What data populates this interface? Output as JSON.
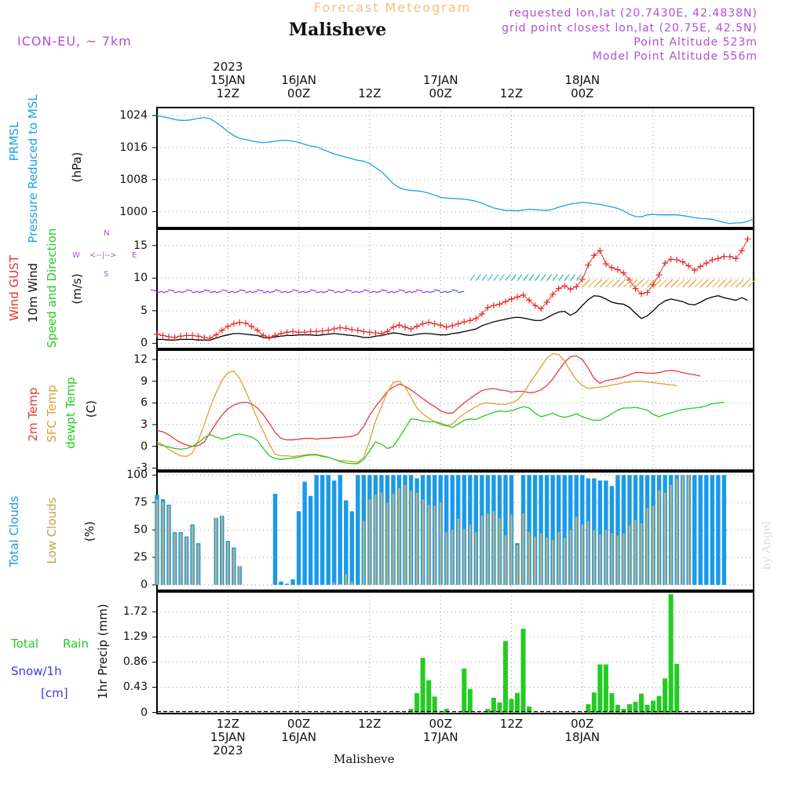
{
  "header": {
    "title": "Forecast Meteogram",
    "location": "Malisheve",
    "model": "ICON-EU, ~ 7km",
    "requested": "requested lon,lat (20.7430E, 42.4838N)",
    "gridpoint": "grid point closest lon,lat (20.75E, 42.5N)",
    "point_alt": "Point Altitude 523m",
    "model_alt": "Model Point Altitude 556m",
    "watermark": "by Angel",
    "bottom_label": "Malisheve"
  },
  "time_axis": {
    "top_labels": [
      {
        "hour": 12,
        "lines": [
          "2023",
          "15JAN",
          "12Z"
        ]
      },
      {
        "hour": 24,
        "lines": [
          "16JAN",
          "00Z"
        ]
      },
      {
        "hour": 36,
        "lines": [
          "12Z"
        ]
      },
      {
        "hour": 48,
        "lines": [
          "17JAN",
          "00Z"
        ]
      },
      {
        "hour": 60,
        "lines": [
          "12Z"
        ]
      },
      {
        "hour": 72,
        "lines": [
          "18JAN",
          "00Z"
        ]
      }
    ],
    "bottom_labels": [
      {
        "hour": 12,
        "lines": [
          "12Z",
          "15JAN",
          "2023"
        ]
      },
      {
        "hour": 24,
        "lines": [
          "00Z",
          "16JAN"
        ]
      },
      {
        "hour": 36,
        "lines": [
          "12Z"
        ]
      },
      {
        "hour": 48,
        "lines": [
          "00Z",
          "17JAN"
        ]
      },
      {
        "hour": 60,
        "lines": [
          "12Z"
        ]
      },
      {
        "hour": 72,
        "lines": [
          "00Z",
          "18JAN"
        ]
      }
    ]
  },
  "panel_labels": {
    "pressure": {
      "a": "PRMSL",
      "b": "Pressure Reduced to MSL",
      "unit": "(hPa)"
    },
    "wind": {
      "gust": "Wind GUST",
      "wind10": "10m Wind",
      "speeddir": "Speed and Direction",
      "unit": "(m/s)",
      "compass_w": "W",
      "compass_e": "E",
      "compass_n": "N",
      "compass_s": "S"
    },
    "temp": {
      "t2m": "2m Temp",
      "sfc": "SFC Temp",
      "dew": "dewpt Temp",
      "unit": "(C)"
    },
    "clouds": {
      "total": "Total Clouds",
      "low": "Low Clouds",
      "unit": "(%)"
    },
    "precip": {
      "total": "Total",
      "rain": "Rain",
      "snow": "Snow/1h",
      "cm": "[cm]",
      "axis": "1hr Precip (mm)"
    }
  },
  "colors": {
    "pressure": "#1aa0e8",
    "gust": "#e83030",
    "wind": "#000000",
    "t2m": "#e83a3a",
    "sfc": "#e0a030",
    "dew": "#22cc22",
    "total_clouds": "#1a9ae8",
    "low_clouds": "#c8b078",
    "rain": "#22cc22",
    "label_purple": "#b050d0",
    "snow": "#3a3ae8"
  },
  "chart_data": [
    {
      "type": "line",
      "name": "pressure",
      "x_unit": "hours",
      "x_start": 0,
      "x_step": 1,
      "y_ticks": [
        1000,
        1008,
        1016,
        1024
      ],
      "ylim": [
        996,
        1026
      ],
      "series": [
        {
          "name": "PRMSL",
          "values": [
            1024,
            1023.7,
            1023.4,
            1023,
            1022.8,
            1022.8,
            1023,
            1023.3,
            1023.5,
            1023.2,
            1022.3,
            1021.2,
            1020,
            1019,
            1018.3,
            1018,
            1017.7,
            1017.4,
            1017.2,
            1017.4,
            1017.6,
            1017.8,
            1017.8,
            1017.6,
            1017.3,
            1016.8,
            1016.4,
            1016.2,
            1015.6,
            1015,
            1014.4,
            1014,
            1013.6,
            1013.2,
            1012.8,
            1012.6,
            1012,
            1011,
            1010,
            1008.5,
            1007,
            1006,
            1005.5,
            1005.3,
            1005.2,
            1005,
            1004.6,
            1004.1,
            1003.6,
            1003.4,
            1003.3,
            1003.2,
            1003.1,
            1002.9,
            1002.6,
            1002.1,
            1001.5,
            1000.9,
            1000.6,
            1000.3,
            1000.3,
            1000.2,
            1000.4,
            1000.6,
            1000.5,
            1000.4,
            1000.3,
            1000.6,
            1001.1,
            1001.5,
            1001.9,
            1002.1,
            1002.3,
            1002.2,
            1002,
            1001.8,
            1001.5,
            1001.2,
            1000.8,
            1000.2,
            999.3,
            998.8,
            998.7,
            999.2,
            999.3,
            999.2,
            999.2,
            999.2,
            999.2,
            999,
            998.8,
            998.5,
            998.3,
            998.2,
            998.1,
            997.7,
            997.3,
            997,
            997.2,
            997.2,
            997.6,
            998.1
          ]
        }
      ]
    },
    {
      "type": "line",
      "name": "wind",
      "x_unit": "hours",
      "x_start": 0,
      "x_step": 1,
      "y_ticks": [
        0,
        5,
        10,
        15
      ],
      "ylim": [
        -0.8,
        17.5
      ],
      "series": [
        {
          "name": "Wind GUST",
          "values": [
            1.4,
            1.2,
            1.0,
            0.9,
            1.1,
            1.2,
            1.2,
            1.1,
            0.9,
            0.8,
            1.3,
            2.0,
            2.6,
            3.0,
            3.2,
            3.1,
            2.6,
            2.0,
            1.2,
            0.9,
            1.2,
            1.5,
            1.7,
            1.8,
            1.7,
            1.7,
            1.8,
            1.8,
            1.9,
            2.0,
            2.2,
            2.4,
            2.3,
            2.1,
            2.0,
            1.8,
            1.7,
            1.6,
            1.5,
            1.8,
            2.5,
            2.8,
            2.5,
            2.2,
            2.6,
            3.0,
            3.2,
            3.0,
            2.8,
            2.5,
            2.7,
            3.0,
            3.3,
            3.5,
            3.8,
            4.5,
            5.5,
            5.8,
            6.0,
            6.4,
            6.8,
            7.1,
            7.4,
            6.6,
            5.8,
            5.3,
            6.3,
            7.5,
            8.4,
            8.8,
            8.3,
            8.7,
            9.8,
            12.0,
            13.5,
            14.2,
            12.2,
            11.6,
            11.3,
            10.8,
            9.7,
            8.4,
            7.6,
            7.8,
            9.0,
            10.5,
            12.3,
            12.9,
            12.8,
            12.5,
            11.9,
            11.2,
            11.8,
            12.3,
            12.8,
            13.0,
            13.3,
            13.3,
            13.0,
            14.2,
            16.0
          ]
        },
        {
          "name": "10m Wind",
          "values": [
            0.6,
            0.6,
            0.5,
            0.5,
            0.6,
            0.6,
            0.6,
            0.5,
            0.5,
            0.5,
            0.8,
            1.1,
            1.3,
            1.5,
            1.5,
            1.4,
            1.3,
            1.2,
            0.9,
            0.8,
            1.0,
            1.1,
            1.2,
            1.2,
            1.3,
            1.3,
            1.3,
            1.2,
            1.3,
            1.4,
            1.5,
            1.4,
            1.3,
            1.2,
            1.1,
            0.9,
            0.9,
            1.1,
            1.2,
            1.4,
            1.6,
            1.5,
            1.3,
            1.2,
            1.4,
            1.5,
            1.5,
            1.4,
            1.3,
            1.3,
            1.5,
            1.6,
            1.8,
            2.0,
            2.2,
            2.7,
            3.0,
            3.3,
            3.5,
            3.7,
            3.9,
            4.0,
            3.9,
            3.7,
            3.5,
            3.5,
            3.9,
            4.4,
            4.8,
            4.9,
            4.3,
            4.8,
            5.8,
            6.7,
            7.3,
            7.2,
            6.8,
            6.3,
            6.1,
            6.0,
            5.5,
            4.6,
            3.8,
            4.2,
            5.0,
            5.9,
            6.5,
            6.8,
            6.6,
            6.4,
            6.0,
            5.9,
            6.3,
            6.8,
            7.1,
            7.3,
            7.0,
            6.8,
            6.6,
            7.0,
            6.6
          ]
        }
      ],
      "wind_barbs": {
        "note": "arrows at each hour, colored by speed",
        "start_hour": 0,
        "end_hour": 100
      }
    },
    {
      "type": "line",
      "name": "temperature",
      "x_unit": "hours",
      "x_start": 0,
      "x_step": 1,
      "y_ticks": [
        -3,
        0,
        3,
        6,
        9,
        12
      ],
      "ylim": [
        -3.3,
        13.3
      ],
      "series": [
        {
          "name": "2m Temp",
          "values": [
            2.2,
            2.0,
            1.6,
            1.0,
            0.5,
            0.2,
            0.0,
            0.1,
            0.6,
            1.9,
            3.2,
            4.3,
            5.2,
            5.7,
            6.0,
            6.1,
            5.9,
            5.3,
            4.4,
            3.2,
            1.9,
            1.1,
            0.9,
            0.9,
            1.0,
            1.1,
            1.1,
            1.0,
            1.1,
            1.1,
            1.2,
            1.2,
            1.3,
            1.4,
            1.7,
            2.8,
            4.3,
            5.5,
            6.5,
            7.6,
            8.2,
            8.6,
            8.3,
            7.8,
            7.2,
            6.6,
            6.0,
            5.5,
            4.9,
            4.6,
            4.6,
            5.3,
            6.0,
            6.6,
            7.2,
            7.7,
            7.9,
            8.0,
            7.8,
            7.7,
            7.5,
            7.6,
            7.6,
            7.4,
            7.5,
            7.8,
            8.4,
            9.3,
            10.5,
            11.6,
            12.4,
            12.5,
            12.0,
            10.8,
            9.4,
            8.7,
            9.1,
            9.2,
            9.4,
            9.6,
            9.9,
            10.2,
            10.2,
            10.1,
            10.1,
            10.2,
            10.4,
            10.5,
            10.4,
            10.2,
            10.0,
            9.9,
            9.7
          ]
        },
        {
          "name": "SFC Temp",
          "values": [
            0.6,
            0.2,
            -0.4,
            -0.9,
            -1.3,
            -1.4,
            -0.9,
            0.8,
            3.0,
            5.4,
            7.4,
            9.1,
            10.2,
            10.4,
            9.4,
            7.7,
            5.7,
            3.8,
            2.1,
            0.3,
            -1.1,
            -1.3,
            -1.3,
            -1.4,
            -1.3,
            -1.2,
            -1.1,
            -1.1,
            -1.3,
            -1.5,
            -1.8,
            -2.0,
            -2.0,
            -2.1,
            -2.2,
            -1.5,
            0.8,
            3.5,
            5.5,
            7.5,
            8.8,
            9.0,
            8.2,
            6.8,
            5.3,
            4.5,
            3.9,
            3.4,
            3.0,
            2.8,
            3.1,
            3.9,
            4.5,
            5.0,
            5.5,
            5.9,
            6.0,
            5.9,
            5.8,
            5.8,
            6.0,
            6.4,
            7.3,
            8.6,
            9.8,
            11.0,
            12.2,
            12.8,
            12.7,
            11.8,
            10.4,
            9.2,
            8.4,
            8.0,
            8.1,
            8.2,
            8.3,
            8.5,
            8.6,
            8.8,
            8.9,
            9.0,
            9.0,
            8.9,
            8.8,
            8.7,
            8.6,
            8.5,
            8.4
          ]
        },
        {
          "name": "dewpt Temp",
          "values": [
            0.3,
            0.1,
            -0.1,
            -0.3,
            -0.4,
            -0.3,
            0.0,
            0.5,
            1.2,
            1.6,
            1.3,
            1.0,
            1.2,
            1.6,
            1.7,
            1.5,
            1.3,
            0.8,
            -0.3,
            -1.3,
            -1.7,
            -1.8,
            -1.7,
            -1.6,
            -1.5,
            -1.3,
            -1.2,
            -1.2,
            -1.4,
            -1.5,
            -1.8,
            -2.1,
            -2.3,
            -2.4,
            -2.4,
            -1.8,
            -0.6,
            0.6,
            0.3,
            -0.3,
            0.0,
            1.2,
            2.5,
            3.8,
            3.7,
            3.5,
            3.4,
            3.4,
            3.2,
            2.9,
            2.6,
            3.1,
            3.6,
            3.8,
            3.7,
            4.1,
            4.4,
            4.7,
            4.9,
            4.8,
            4.9,
            5.2,
            5.5,
            5.3,
            4.6,
            4.1,
            4.3,
            4.6,
            4.2,
            4.0,
            4.2,
            4.5,
            4.1,
            3.8,
            3.6,
            3.6,
            4.0,
            4.5,
            5.0,
            5.3,
            5.3,
            5.4,
            5.2,
            5.0,
            4.4,
            4.1,
            4.4,
            4.6,
            4.9,
            5.1,
            5.2,
            5.3,
            5.4,
            5.6,
            5.9,
            6.0,
            6.1
          ]
        }
      ]
    },
    {
      "type": "bar",
      "name": "clouds",
      "x_unit": "hours",
      "x_start": 0,
      "x_step": 1,
      "y_ticks": [
        0,
        25,
        50,
        75,
        100
      ],
      "ylim": [
        -5,
        103
      ],
      "series": [
        {
          "name": "Total Clouds",
          "values": [
            82,
            78,
            73,
            48,
            48,
            44,
            55,
            38,
            0,
            0,
            61,
            63,
            40,
            34,
            17,
            0,
            0,
            0,
            0,
            0,
            83,
            3,
            1,
            5,
            67,
            94,
            81,
            100,
            100,
            100,
            95,
            100,
            77,
            67,
            100,
            100,
            100,
            100,
            100,
            100,
            100,
            100,
            100,
            100,
            97,
            100,
            100,
            100,
            100,
            100,
            100,
            100,
            100,
            100,
            100,
            100,
            100,
            100,
            100,
            100,
            100,
            38,
            100,
            100,
            100,
            100,
            100,
            100,
            100,
            100,
            100,
            100,
            100,
            97,
            97,
            95,
            95,
            90,
            100,
            100,
            100,
            100,
            100,
            100,
            100,
            100,
            100,
            100,
            100,
            100,
            100,
            100,
            100,
            100,
            100,
            100,
            100
          ]
        },
        {
          "name": "Low Clouds",
          "values": [
            78,
            76,
            72,
            47,
            47,
            43,
            54,
            37,
            0,
            0,
            61,
            63,
            39,
            33,
            17,
            0,
            0,
            0,
            0,
            0,
            0,
            0,
            0,
            0,
            0,
            0,
            0,
            0,
            0,
            0,
            2,
            1,
            10,
            3,
            0,
            58,
            78,
            82,
            84,
            75,
            83,
            88,
            91,
            86,
            84,
            78,
            73,
            72,
            75,
            48,
            50,
            60,
            51,
            55,
            48,
            63,
            65,
            67,
            61,
            45,
            64,
            36,
            65,
            48,
            44,
            47,
            43,
            41,
            48,
            43,
            50,
            62,
            55,
            58,
            50,
            46,
            50,
            47,
            45,
            47,
            54,
            59,
            56,
            70,
            72,
            86,
            84,
            91,
            97,
            100,
            100
          ]
        }
      ]
    },
    {
      "type": "bar",
      "name": "precip",
      "x_unit": "hours",
      "x_start": 0,
      "x_step": 1,
      "y_ticks": [
        0,
        0.43,
        0.86,
        1.29,
        1.72
      ],
      "ylim": [
        -0.02,
        2.06
      ],
      "series": [
        {
          "name": "Total Rain",
          "values": [
            0,
            0,
            0,
            0,
            0,
            0,
            0,
            0,
            0,
            0,
            0,
            0,
            0,
            0,
            0,
            0,
            0,
            0,
            0,
            0,
            0,
            0,
            0,
            0,
            0,
            0,
            0,
            0,
            0,
            0,
            0,
            0,
            0,
            0,
            0,
            0,
            0,
            0,
            0,
            0,
            0,
            0,
            0,
            0.06,
            0.33,
            0.93,
            0.55,
            0.27,
            0,
            0.06,
            0,
            0,
            0.75,
            0.4,
            0,
            0,
            0.06,
            0.25,
            0.17,
            1.22,
            0.23,
            0.33,
            1.43,
            0.1,
            0,
            0,
            0,
            0,
            0,
            0,
            0,
            0,
            0,
            0.14,
            0.34,
            0.82,
            0.82,
            0.33,
            0.13,
            0.06,
            0.14,
            0.18,
            0.32,
            0.13,
            0.2,
            0.28,
            0.58,
            2.02,
            0.83,
            0,
            0,
            0,
            0,
            0,
            0,
            0,
            0,
            0,
            0,
            0,
            0
          ]
        }
      ]
    }
  ]
}
